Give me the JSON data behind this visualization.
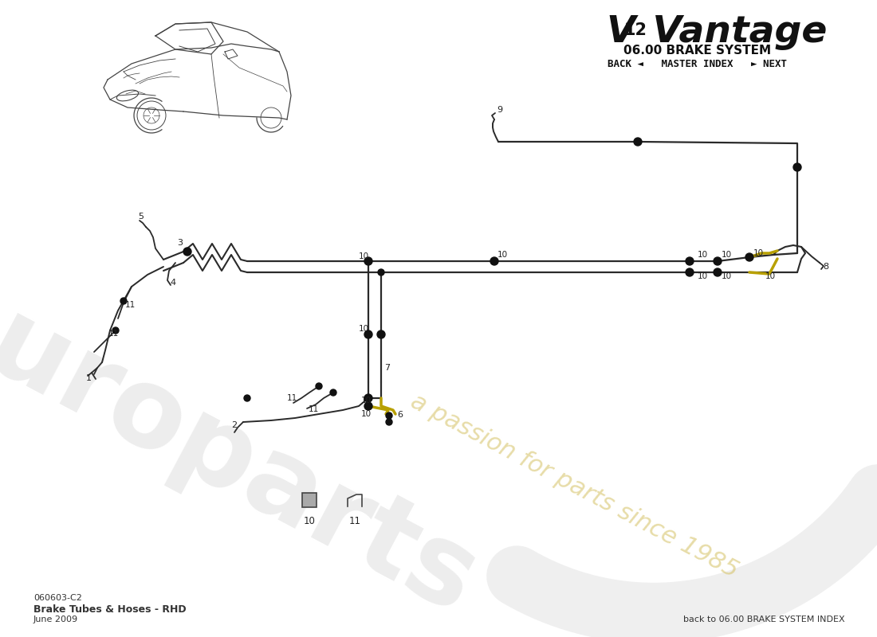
{
  "subtitle": "06.00 BRAKE SYSTEM",
  "nav_text": "BACK ◄   MASTER INDEX   ► NEXT",
  "part_code": "060603-C2",
  "part_name": "Brake Tubes & Hoses - RHD",
  "date": "June 2009",
  "footer_right": "back to 06.00 BRAKE SYSTEM INDEX",
  "bg_color": "#ffffff",
  "line_color": "#2a2a2a",
  "highlight_line_color": "#b8a000",
  "dot_color": "#111111",
  "label_color": "#222222",
  "europarts_color": "#c0c0c0",
  "passion_color": "#d4c060",
  "header_color": "#111111"
}
